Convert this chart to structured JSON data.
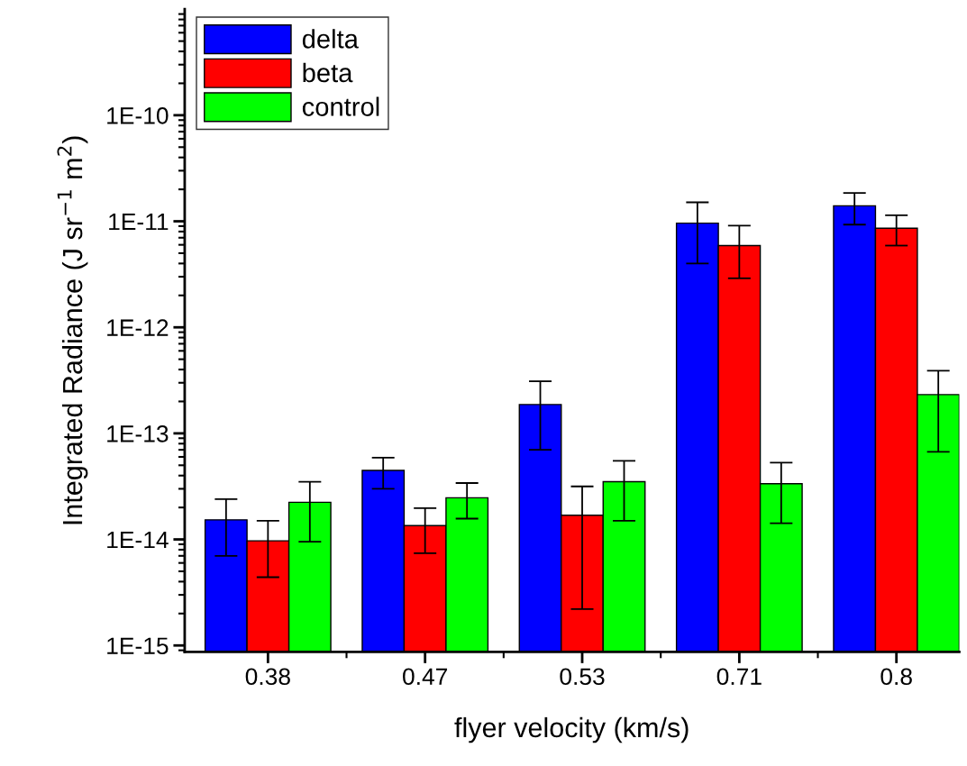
{
  "chart_data": {
    "type": "bar",
    "xlabel": "flyer velocity (km/s)",
    "ylabel": "Integrated Radiance (J sr$^{−1}$ m$^{2}$)",
    "categories": [
      "0.38",
      "0.47",
      "0.53",
      "0.71",
      "0.8"
    ],
    "series": [
      {
        "name": "delta",
        "color": "#0000ff",
        "values": [
          1.53e-14,
          4.47e-14,
          1.87e-13,
          9.6e-12,
          1.4e-11
        ],
        "errors": [
          [
            7e-15,
            2.4e-14
          ],
          [
            3e-14,
            5.9e-14
          ],
          [
            7e-14,
            3.1e-13
          ],
          [
            4e-12,
            1.51e-11
          ],
          [
            9.3e-12,
            1.85e-11
          ]
        ]
      },
      {
        "name": "beta",
        "color": "#ff0000",
        "values": [
          9.7e-15,
          1.35e-14,
          1.69e-14,
          5.9e-12,
          8.6e-12
        ],
        "errors": [
          [
            4.4e-15,
            1.5e-14
          ],
          [
            7.4e-15,
            1.97e-14
          ],
          [
            2.2e-15,
            3.16e-14
          ],
          [
            2.9e-12,
            9.1e-12
          ],
          [
            5.9e-12,
            1.14e-11
          ]
        ]
      },
      {
        "name": "control",
        "color": "#00ff00",
        "values": [
          2.24e-14,
          2.47e-14,
          3.5e-14,
          3.35e-14,
          2.32e-13
        ],
        "errors": [
          [
            9.5e-15,
            3.5e-14
          ],
          [
            1.57e-14,
            3.4e-14
          ],
          [
            1.5e-14,
            5.5e-14
          ],
          [
            1.42e-14,
            5.3e-14
          ],
          [
            6.7e-14,
            3.9e-13
          ]
        ]
      }
    ],
    "log": "y",
    "ylim": [
      8.7e-16,
      1e-09
    ],
    "yticks": [
      {
        "value": 1e-15,
        "label": "1E-15"
      },
      {
        "value": 1e-14,
        "label": "1E-14"
      },
      {
        "value": 1e-13,
        "label": "1E-13"
      },
      {
        "value": 1e-12,
        "label": "1E-12"
      },
      {
        "value": 1e-11,
        "label": "1E-11"
      },
      {
        "value": 1e-10,
        "label": "1E-10"
      }
    ],
    "grid": false,
    "legend": "top left"
  }
}
